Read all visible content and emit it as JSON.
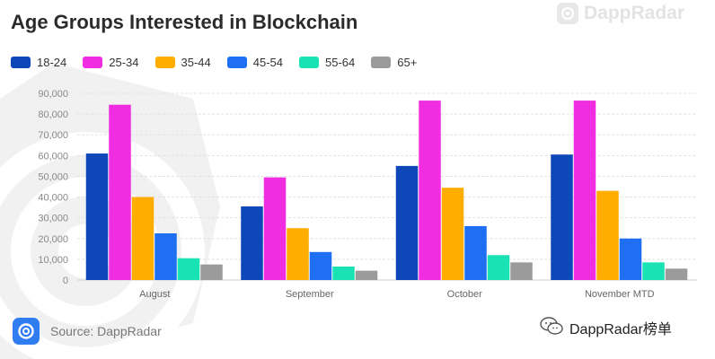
{
  "title": "Age Groups Interested in Blockchain",
  "brand_top": "DappRadar",
  "source": "Source: DappRadar",
  "wechat_handle": "DappRadar榜单",
  "icons": {
    "brand": "dappradar-logo-icon",
    "source": "dappradar-logo-icon",
    "wechat": "wechat-icon",
    "watermark": "dappradar-watermark-icon"
  },
  "chart_data": {
    "type": "bar",
    "title": "Age Groups Interested in Blockchain",
    "xlabel": "",
    "ylabel": "",
    "categories": [
      "August",
      "September",
      "October",
      "November MTD"
    ],
    "ylim": [
      0,
      90000
    ],
    "yticks": [
      0,
      10000,
      20000,
      30000,
      40000,
      50000,
      60000,
      70000,
      80000,
      90000
    ],
    "ytick_labels": [
      "0",
      "10,000",
      "20,000",
      "30,000",
      "40,000",
      "50,000",
      "60,000",
      "70,000",
      "80,000",
      "90,000"
    ],
    "grid": true,
    "legend_position": "top-left",
    "series": [
      {
        "name": "18-24",
        "color": "#0d47b8",
        "values": [
          61000,
          35500,
          55000,
          60500
        ]
      },
      {
        "name": "25-34",
        "color": "#f02de0",
        "values": [
          84500,
          49500,
          86500,
          86500
        ]
      },
      {
        "name": "35-44",
        "color": "#ffad00",
        "values": [
          40000,
          25000,
          44500,
          43000
        ]
      },
      {
        "name": "45-54",
        "color": "#1e6ff2",
        "values": [
          22500,
          13500,
          26000,
          20000
        ]
      },
      {
        "name": "55-64",
        "color": "#19e3b4",
        "values": [
          10500,
          6500,
          12000,
          8500
        ]
      },
      {
        "name": "65+",
        "color": "#9b9b9b",
        "values": [
          7500,
          4500,
          8500,
          5500
        ]
      }
    ]
  }
}
